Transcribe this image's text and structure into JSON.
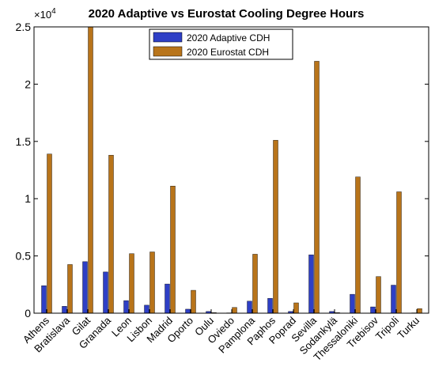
{
  "chart_data": {
    "type": "bar",
    "title": "2020 Adaptive vs Eurostat Cooling Degree Hours",
    "xlabel": "",
    "ylabel": "",
    "ylim": [
      0,
      25000
    ],
    "yticks": [
      0,
      5000,
      10000,
      15000,
      20000,
      25000
    ],
    "ytick_labels": [
      "0",
      "0.5",
      "1",
      "1.5",
      "2",
      "2.5"
    ],
    "y_multiplier_label": "×10",
    "y_multiplier_exponent": "4",
    "categories": [
      "Athens",
      "Bratislava",
      "Gilat",
      "Granada",
      "Leon",
      "Lisbon",
      "Madrid",
      "Oporto",
      "Oulu",
      "Oviedo",
      "Pamplona",
      "Paphos",
      "Poprad",
      "Sevilla",
      "Sodankylä",
      "Thessaloniki",
      "Trebisov",
      "Tripoli",
      "Turku"
    ],
    "series": [
      {
        "name": "2020 Adaptive CDH",
        "color": "#2e3fc6",
        "values": [
          2400,
          600,
          4500,
          3600,
          1100,
          700,
          2550,
          350,
          150,
          30,
          1050,
          1300,
          150,
          5100,
          150,
          1650,
          550,
          2450,
          30
        ]
      },
      {
        "name": "2020 Eurostat CDH",
        "color": "#b8741a",
        "values": [
          13900,
          4250,
          25000,
          13800,
          5200,
          5350,
          11100,
          2000,
          50,
          500,
          5150,
          15100,
          900,
          22000,
          50,
          11900,
          3200,
          10600,
          400
        ]
      }
    ],
    "grid": false,
    "legend_position": "top-center"
  }
}
